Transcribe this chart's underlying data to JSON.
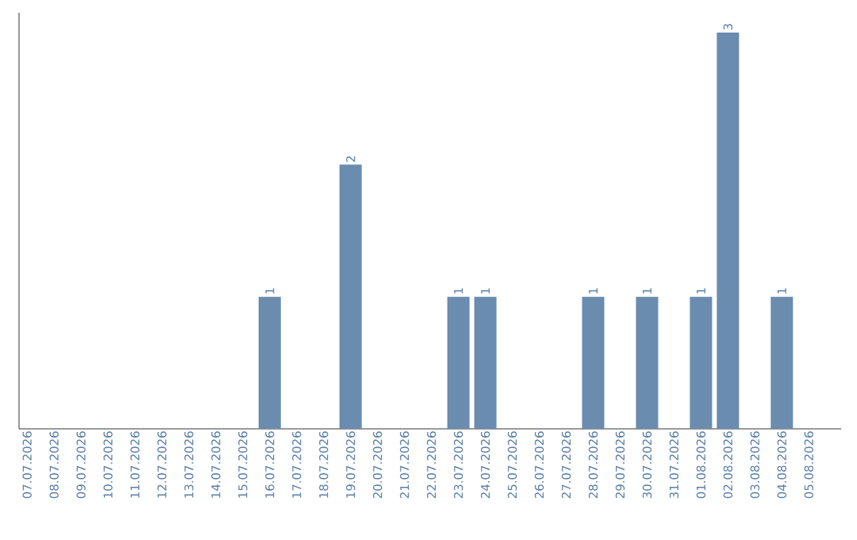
{
  "chart_data": {
    "type": "bar",
    "categories": [
      "07.07.2026",
      "08.07.2026",
      "09.07.2026",
      "10.07.2026",
      "11.07.2026",
      "12.07.2026",
      "13.07.2026",
      "14.07.2026",
      "15.07.2026",
      "16.07.2026",
      "17.07.2026",
      "18.07.2026",
      "19.07.2026",
      "20.07.2026",
      "21.07.2026",
      "22.07.2026",
      "23.07.2026",
      "24.07.2026",
      "25.07.2026",
      "26.07.2026",
      "27.07.2026",
      "28.07.2026",
      "29.07.2026",
      "30.07.2026",
      "31.07.2026",
      "01.08.2026",
      "02.08.2026",
      "03.08.2026",
      "04.08.2026",
      "05.08.2026"
    ],
    "values": [
      0,
      0,
      0,
      0,
      0,
      0,
      0,
      0,
      0,
      1,
      0,
      0,
      2,
      0,
      0,
      0,
      1,
      1,
      0,
      0,
      0,
      1,
      0,
      1,
      0,
      1,
      3,
      0,
      1,
      0
    ],
    "value_labels": [
      null,
      null,
      null,
      null,
      null,
      null,
      null,
      null,
      null,
      "1",
      null,
      null,
      "2",
      null,
      null,
      null,
      "1",
      "1",
      null,
      null,
      null,
      "1",
      null,
      "1",
      null,
      "1",
      "3",
      null,
      "1",
      null
    ],
    "color": "#6a8caf",
    "ylim": [
      0,
      3.15
    ],
    "tick_labels": "x"
  }
}
